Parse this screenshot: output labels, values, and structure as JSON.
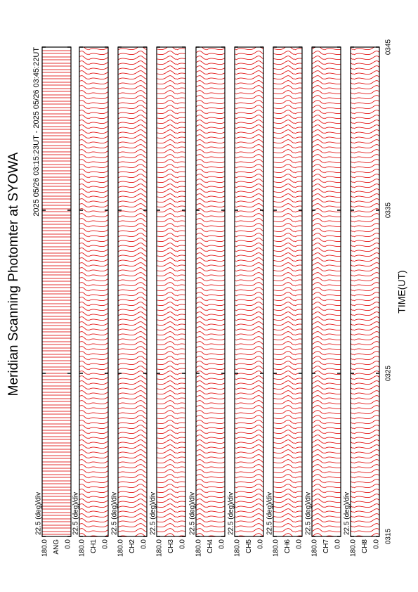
{
  "chart_data": {
    "type": "stacked-profiles",
    "title": "Meridian Scanning Photomter at SYOWA",
    "subtitle": "2025 05/26 03:15:23UT - 2025 05/26 03:45:22UT",
    "xlabel": "TIME(UT)",
    "xlim": [
      315,
      345
    ],
    "xticks": [
      {
        "value": 315,
        "label": "0315"
      },
      {
        "value": 325,
        "label": "0325"
      },
      {
        "value": 335,
        "label": "0335"
      },
      {
        "value": 345,
        "label": "0345"
      }
    ],
    "ylim": [
      0,
      180
    ],
    "yticks": [
      {
        "value": 0,
        "label": "0.0"
      },
      {
        "value": 180,
        "label": "180.0"
      }
    ],
    "scale_label": "22.5 (deg)/div",
    "color": "#e00000",
    "panels": [
      "ANG",
      "CH1",
      "CH2",
      "CH3",
      "CH4",
      "CH5",
      "CH6",
      "CH7",
      "CH8"
    ]
  }
}
